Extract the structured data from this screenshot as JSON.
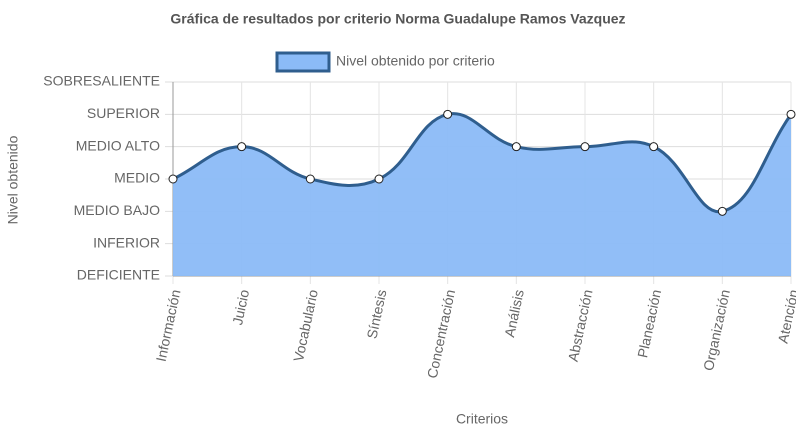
{
  "chart_data": {
    "type": "line",
    "title": "Gráfica de resultados por criterio Norma Guadalupe Ramos Vazquez",
    "x_label": "Criterios",
    "y_label": "Nivel obtenido",
    "categories": [
      "Información",
      "Juicio",
      "Vocabulario",
      "Síntesis",
      "Concentración",
      "Análisis",
      "Abstracción",
      "Planeación",
      "Organización",
      "Atención"
    ],
    "series": [
      {
        "name": "Nivel obtenido por criterio",
        "color": "#2f5e8e",
        "fill": "#8bbbf7",
        "values": [
          3,
          4,
          3,
          3,
          5,
          4,
          4,
          4,
          2,
          5
        ]
      }
    ],
    "ylim": [
      0,
      6
    ],
    "yticks": [
      {
        "value": 0,
        "label": "DEFICIENTE"
      },
      {
        "value": 1,
        "label": "INFERIOR"
      },
      {
        "value": 2,
        "label": "MEDIO BAJO"
      },
      {
        "value": 3,
        "label": "MEDIO"
      },
      {
        "value": 4,
        "label": "MEDIO ALTO"
      },
      {
        "value": 5,
        "label": "SUPERIOR"
      },
      {
        "value": 6,
        "label": "SOBRESALIENTE"
      }
    ],
    "grid": true,
    "legend": "top"
  }
}
